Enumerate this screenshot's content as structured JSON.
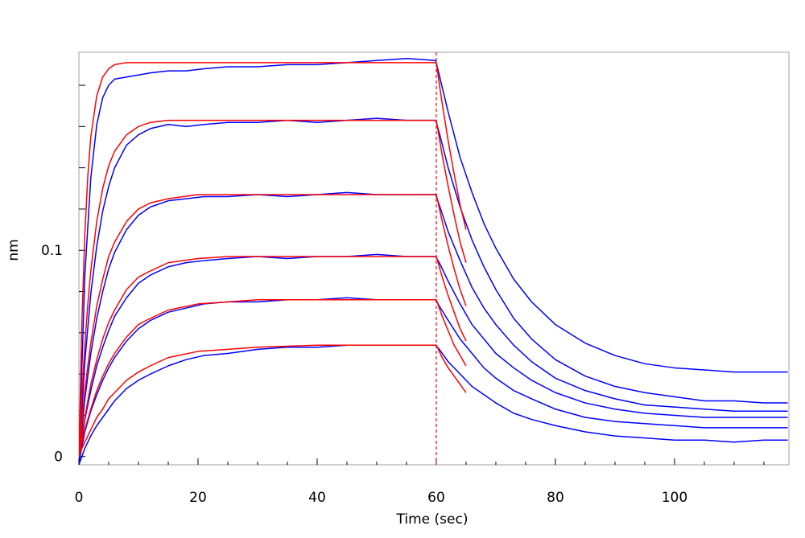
{
  "chart_data": {
    "type": "line",
    "xlabel": "Time (sec)",
    "ylabel": "nm",
    "xlim": [
      0,
      119.2
    ],
    "ylim": [
      -0.004,
      0.196
    ],
    "xticks": [
      0,
      20,
      40,
      60,
      80,
      100
    ],
    "xminor_ticks": [
      5,
      10,
      15,
      25,
      30,
      35,
      45,
      50,
      55,
      65,
      70,
      75,
      85,
      90,
      95,
      105,
      110,
      115
    ],
    "yticks": [
      0,
      0.1
    ],
    "yminor_ticks": [
      0.02,
      0.04,
      0.06,
      0.08,
      0.12,
      0.14,
      0.16,
      0.18
    ],
    "vline": {
      "x": 60,
      "color": "#ff0000"
    },
    "x": [
      0,
      1,
      2,
      3,
      4,
      5,
      6,
      8,
      10,
      12,
      15,
      18,
      21,
      25,
      30,
      35,
      40,
      45,
      50,
      55,
      59.9,
      60.5,
      62,
      64,
      66,
      68,
      70,
      73,
      76,
      80,
      85,
      90,
      95,
      100,
      105,
      110,
      115,
      119
    ],
    "series": [
      {
        "color": "#0000ff",
        "values": [
          -0.002,
          0.088,
          0.135,
          0.161,
          0.174,
          0.18,
          0.183,
          0.184,
          0.185,
          0.186,
          0.187,
          0.187,
          0.188,
          0.189,
          0.189,
          0.19,
          0.19,
          0.191,
          0.192,
          0.193,
          0.192,
          0.185,
          0.167,
          0.145,
          0.128,
          0.113,
          0.101,
          0.086,
          0.075,
          0.064,
          0.055,
          0.049,
          0.045,
          0.043,
          0.042,
          0.041,
          0.041,
          0.041
        ]
      },
      {
        "color": "#0000ff",
        "values": [
          -0.002,
          0.046,
          0.079,
          0.102,
          0.119,
          0.131,
          0.14,
          0.151,
          0.156,
          0.159,
          0.161,
          0.16,
          0.161,
          0.162,
          0.162,
          0.163,
          0.162,
          0.163,
          0.164,
          0.163,
          0.163,
          0.157,
          0.14,
          0.121,
          0.105,
          0.092,
          0.081,
          0.067,
          0.057,
          0.047,
          0.039,
          0.034,
          0.031,
          0.029,
          0.027,
          0.027,
          0.026,
          0.026
        ]
      },
      {
        "color": "#0000ff",
        "values": [
          -0.002,
          0.028,
          0.05,
          0.067,
          0.08,
          0.091,
          0.099,
          0.11,
          0.117,
          0.121,
          0.124,
          0.125,
          0.126,
          0.126,
          0.127,
          0.126,
          0.127,
          0.128,
          0.127,
          0.127,
          0.127,
          0.122,
          0.109,
          0.095,
          0.082,
          0.072,
          0.064,
          0.054,
          0.046,
          0.038,
          0.032,
          0.028,
          0.025,
          0.024,
          0.023,
          0.022,
          0.022,
          0.022
        ]
      },
      {
        "color": "#0000ff",
        "values": [
          -0.003,
          0.018,
          0.032,
          0.044,
          0.053,
          0.061,
          0.068,
          0.077,
          0.084,
          0.088,
          0.092,
          0.094,
          0.095,
          0.096,
          0.097,
          0.096,
          0.097,
          0.097,
          0.098,
          0.097,
          0.097,
          0.094,
          0.085,
          0.074,
          0.064,
          0.057,
          0.05,
          0.043,
          0.037,
          0.031,
          0.026,
          0.023,
          0.021,
          0.02,
          0.019,
          0.019,
          0.019,
          0.019
        ]
      },
      {
        "color": "#0000ff",
        "values": [
          -0.003,
          0.012,
          0.022,
          0.03,
          0.037,
          0.043,
          0.048,
          0.056,
          0.062,
          0.066,
          0.07,
          0.072,
          0.074,
          0.075,
          0.075,
          0.076,
          0.076,
          0.077,
          0.076,
          0.076,
          0.076,
          0.073,
          0.066,
          0.057,
          0.05,
          0.043,
          0.038,
          0.032,
          0.028,
          0.023,
          0.019,
          0.017,
          0.016,
          0.015,
          0.014,
          0.014,
          0.014,
          0.014
        ]
      },
      {
        "color": "#0000ff",
        "values": [
          -0.004,
          0.004,
          0.01,
          0.015,
          0.019,
          0.023,
          0.027,
          0.033,
          0.037,
          0.04,
          0.044,
          0.047,
          0.049,
          0.05,
          0.052,
          0.053,
          0.053,
          0.054,
          0.054,
          0.054,
          0.054,
          0.052,
          0.046,
          0.04,
          0.034,
          0.03,
          0.026,
          0.021,
          0.018,
          0.015,
          0.012,
          0.01,
          0.009,
          0.008,
          0.008,
          0.007,
          0.008,
          0.008
        ]
      },
      {
        "color": "#ff0000",
        "x": [
          0,
          0.5,
          1,
          1.5,
          2,
          3,
          4,
          5,
          6,
          8,
          10,
          12,
          15,
          20,
          25,
          30,
          40,
          50,
          60,
          61,
          62,
          63,
          64,
          65
        ],
        "values": [
          0,
          0.065,
          0.108,
          0.136,
          0.155,
          0.175,
          0.184,
          0.188,
          0.19,
          0.191,
          0.191,
          0.191,
          0.191,
          0.191,
          0.191,
          0.191,
          0.191,
          0.191,
          0.191,
          0.171,
          0.153,
          0.137,
          0.122,
          0.11
        ]
      },
      {
        "color": "#ff0000",
        "x": [
          0,
          0.5,
          1,
          1.5,
          2,
          3,
          4,
          5,
          6,
          8,
          10,
          12,
          15,
          20,
          25,
          30,
          40,
          50,
          60,
          61,
          62,
          63,
          64,
          65
        ],
        "values": [
          0,
          0.03,
          0.054,
          0.074,
          0.09,
          0.114,
          0.13,
          0.141,
          0.148,
          0.156,
          0.16,
          0.162,
          0.163,
          0.163,
          0.163,
          0.163,
          0.163,
          0.163,
          0.163,
          0.146,
          0.131,
          0.117,
          0.104,
          0.094
        ]
      },
      {
        "color": "#ff0000",
        "x": [
          0,
          0.5,
          1,
          1.5,
          2,
          3,
          4,
          5,
          6,
          8,
          10,
          12,
          15,
          20,
          25,
          30,
          40,
          50,
          60,
          61,
          62,
          63,
          64,
          65
        ],
        "values": [
          0,
          0.017,
          0.032,
          0.044,
          0.055,
          0.073,
          0.086,
          0.097,
          0.104,
          0.114,
          0.12,
          0.123,
          0.125,
          0.127,
          0.127,
          0.127,
          0.127,
          0.127,
          0.127,
          0.114,
          0.102,
          0.091,
          0.081,
          0.073
        ]
      },
      {
        "color": "#ff0000",
        "x": [
          0,
          0.5,
          1,
          1.5,
          2,
          3,
          4,
          5,
          6,
          8,
          10,
          12,
          15,
          20,
          25,
          30,
          40,
          50,
          60,
          61,
          62,
          63,
          64,
          65
        ],
        "values": [
          0,
          0.01,
          0.019,
          0.027,
          0.035,
          0.047,
          0.057,
          0.065,
          0.071,
          0.081,
          0.087,
          0.09,
          0.094,
          0.096,
          0.097,
          0.097,
          0.097,
          0.097,
          0.097,
          0.087,
          0.078,
          0.07,
          0.062,
          0.056
        ]
      },
      {
        "color": "#ff0000",
        "x": [
          0,
          0.5,
          1,
          1.5,
          2,
          3,
          4,
          5,
          6,
          8,
          10,
          12,
          15,
          20,
          25,
          30,
          40,
          50,
          60,
          61,
          62,
          63,
          64,
          65
        ],
        "values": [
          0,
          0.007,
          0.013,
          0.018,
          0.023,
          0.032,
          0.039,
          0.045,
          0.05,
          0.058,
          0.064,
          0.067,
          0.071,
          0.074,
          0.075,
          0.076,
          0.076,
          0.076,
          0.076,
          0.068,
          0.061,
          0.054,
          0.049,
          0.044
        ]
      },
      {
        "color": "#ff0000",
        "x": [
          0,
          0.5,
          1,
          1.5,
          2,
          3,
          4,
          5,
          6,
          8,
          10,
          12,
          15,
          20,
          25,
          30,
          40,
          50,
          60,
          61,
          62,
          63,
          64,
          65
        ],
        "values": [
          0,
          0.004,
          0.007,
          0.01,
          0.013,
          0.019,
          0.023,
          0.028,
          0.031,
          0.037,
          0.041,
          0.044,
          0.048,
          0.051,
          0.052,
          0.053,
          0.054,
          0.054,
          0.054,
          0.048,
          0.043,
          0.039,
          0.035,
          0.031
        ]
      }
    ]
  }
}
